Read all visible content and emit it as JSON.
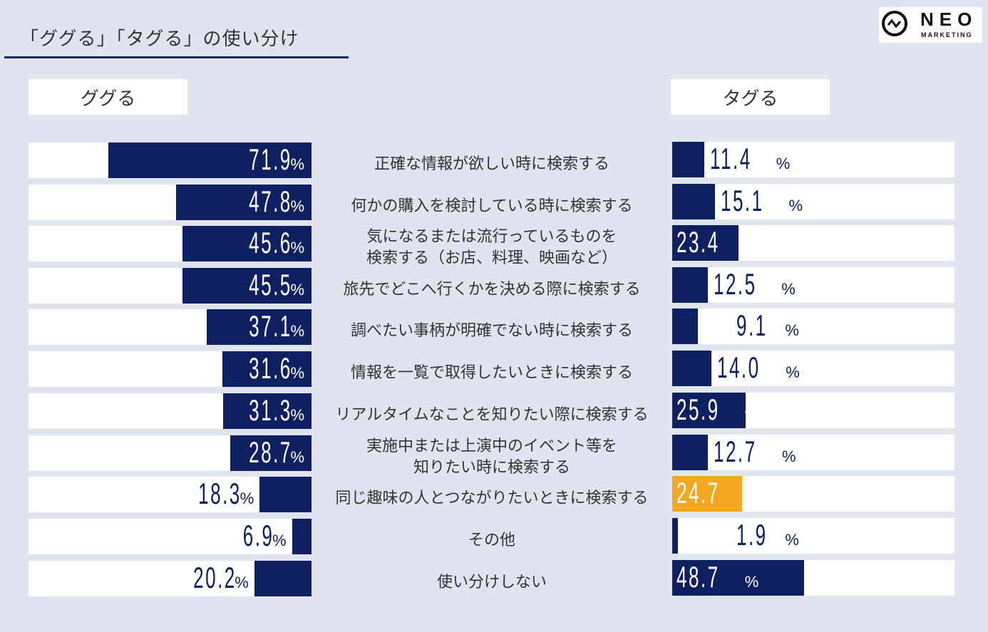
{
  "title": "「ググる」「タグる」の使い分け",
  "logo": {
    "main": "NEO",
    "sub": "MARKETING"
  },
  "colors": {
    "navy": "#0f2060",
    "highlight": "#f5a623",
    "track": "#ffffff",
    "background": "#dfe4ef"
  },
  "chart_data": {
    "type": "bar",
    "title": "「ググる」「タグる」の使い分け",
    "unit": "%",
    "series": [
      {
        "name": "ググる",
        "values": [
          71.9,
          47.8,
          45.6,
          45.5,
          37.1,
          31.6,
          31.3,
          28.7,
          18.3,
          6.9,
          20.2
        ]
      },
      {
        "name": "タグる",
        "values": [
          11.4,
          15.1,
          23.4,
          12.5,
          9.1,
          14.0,
          25.9,
          12.7,
          24.7,
          1.9,
          48.7
        ]
      }
    ],
    "categories": [
      "正確な情報が欲しい時に検索する",
      "何かの購入を検討している時に検索する",
      "気になるまたは流行っているものを\n検索する（お店、料理、映画など）",
      "旅先でどこへ行くかを決める際に検索する",
      "調べたい事柄が明確でない時に検索する",
      "情報を一覧で取得したいときに検索する",
      "リアルタイムなことを知りたい際に検索する",
      "実施中または上演中のイベント等を\n知りたい時に検索する",
      "同じ趣味の人とつながりたいときに検索する",
      "その他",
      "使い分けしない"
    ],
    "value_labels": {
      "left": [
        "71.9",
        "47.8",
        "45.6",
        "45.5",
        "37.1",
        "31.6",
        "31.3",
        "28.7",
        "18.3",
        "6.9",
        "20.2"
      ],
      "right": [
        "11.4",
        "15.1",
        "23.4",
        "12.5",
        "9.1",
        "14.0",
        "25.9",
        "12.7",
        "24.7",
        "1.9",
        "48.7"
      ]
    },
    "highlight": {
      "series": "タグる",
      "category_index": 8
    },
    "xlim": [
      0,
      100
    ]
  }
}
